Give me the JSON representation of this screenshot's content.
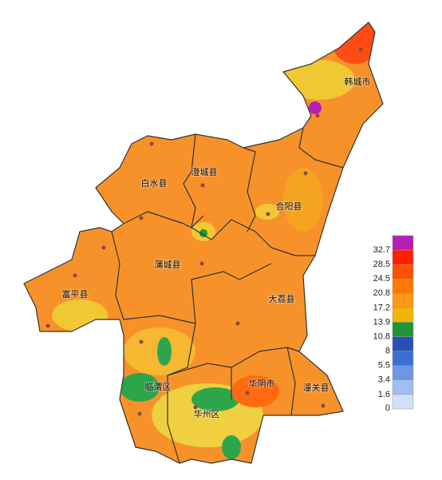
{
  "counties": [
    "韩城市",
    "澄城县",
    "白水县",
    "合阳县",
    "蒲城县",
    "富平县",
    "大荔县",
    "临渭区",
    "华阴市",
    "潼关县",
    "华州区"
  ],
  "legend": {
    "labels": [
      32.7,
      28.5,
      24.5,
      20.8,
      17.2,
      13.9,
      10.8,
      8,
      5.5,
      3.4,
      1.6,
      0
    ],
    "colors": [
      "#b41eb4",
      "#ff1e00",
      "#ff5000",
      "#ff7800",
      "#ff9614",
      "#f5b400",
      "#1e9632",
      "#2850b4",
      "#3c6ed2",
      "#6e96e1",
      "#a0bef0",
      "#d2e0f8"
    ]
  }
}
